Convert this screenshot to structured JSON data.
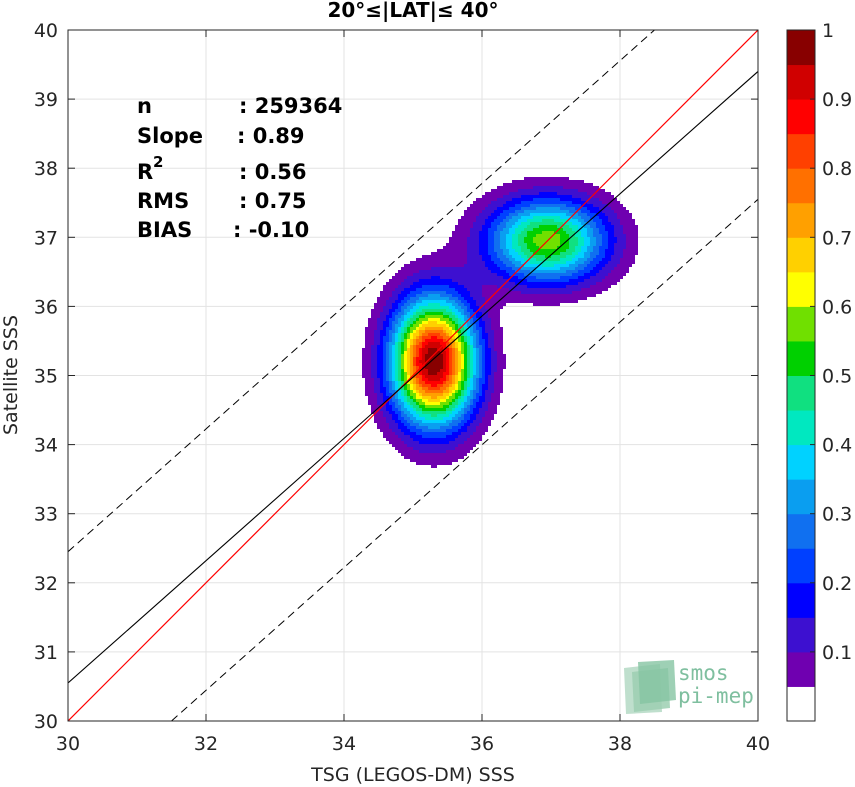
{
  "chart_data": {
    "type": "contour",
    "title": "20°≤|LAT|≤ 40°",
    "xlabel": "TSG (LEGOS-DM) SSS",
    "ylabel": "Satellite SSS",
    "xlim": [
      30,
      40
    ],
    "ylim": [
      30,
      40
    ],
    "xticks": [
      "30",
      "32",
      "34",
      "36",
      "38",
      "40"
    ],
    "yticks": [
      "30",
      "31",
      "32",
      "33",
      "34",
      "35",
      "36",
      "37",
      "38",
      "39",
      "40"
    ],
    "grid": true,
    "stats": {
      "n_label": "n",
      "n_value": ": 259364",
      "slope_label": "Slope",
      "slope_value": ": 0.89",
      "r2_label": "R",
      "r2_sup": "2",
      "r2_value": ": 0.56",
      "rms_label": "RMS",
      "rms_value": ": 0.75",
      "bias_label": "BIAS",
      "bias_value": ": -0.10"
    },
    "lines": {
      "one_to_one": {
        "slope": 1.0,
        "intercept": 0.0,
        "color": "#ff0000"
      },
      "fit": {
        "x": [
          30,
          40
        ],
        "y": [
          30.55,
          39.4
        ],
        "color": "#000000"
      },
      "upper_dashed": {
        "x": [
          30,
          38.5
        ],
        "y": [
          32.45,
          40
        ],
        "dash": true
      },
      "lower_dashed": {
        "x": [
          31.5,
          40
        ],
        "y": [
          30,
          37.55
        ],
        "dash": true
      }
    },
    "density_peaks": [
      {
        "x": 35.3,
        "y": 35.2,
        "amplitude": 1.0,
        "sx": 0.42,
        "sy": 0.62
      },
      {
        "x": 36.95,
        "y": 36.95,
        "amplitude": 0.58,
        "sx": 0.6,
        "sy": 0.42
      }
    ],
    "colorbar": {
      "levels": [
        0.05,
        0.1,
        0.15,
        0.2,
        0.25,
        0.3,
        0.35,
        0.4,
        0.45,
        0.5,
        0.55,
        0.6,
        0.65,
        0.7,
        0.75,
        0.8,
        0.85,
        0.9,
        0.95
      ],
      "colors": [
        "#ffffff",
        "#6f00b0",
        "#3d10d0",
        "#0000ff",
        "#0040ff",
        "#1070f0",
        "#0a9ef0",
        "#00d2ff",
        "#00e8c0",
        "#10e080",
        "#00d000",
        "#70e000",
        "#ffff00",
        "#ffd000",
        "#ffa000",
        "#ff7000",
        "#ff4000",
        "#ff0000",
        "#d00000",
        "#880000"
      ],
      "ticks": [
        "0.1",
        "0.2",
        "0.3",
        "0.4",
        "0.5",
        "0.6",
        "0.7",
        "0.8",
        "0.9",
        "1"
      ],
      "tick_values": [
        0.1,
        0.2,
        0.3,
        0.4,
        0.5,
        0.6,
        0.7,
        0.8,
        0.9,
        1.0
      ]
    },
    "logo": {
      "line1": "smos",
      "line2": "pi-mep"
    }
  }
}
